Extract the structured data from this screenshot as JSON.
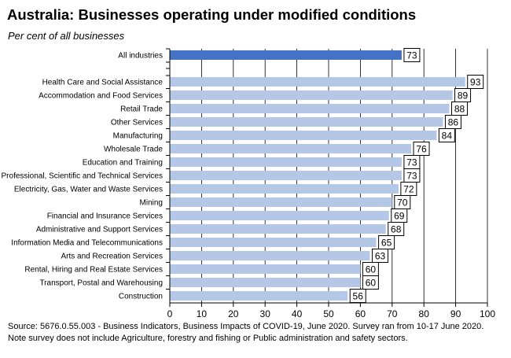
{
  "title": "Australia: Businesses operating under modified conditions",
  "subtitle": "Per cent of all businesses",
  "source": "Source: 5676.0.55.003 - Business Indicators, Business Impacts of COVID-19, June 2020.  Survey ran from 10-17 June 2020.  Note survey does not include Agriculture, forestry and fishing or Public administration and safety sectors.",
  "colors": {
    "highlight": "#4472C4",
    "bar": "#B4C7E7",
    "grid": "#000000"
  },
  "chart_data": {
    "type": "bar",
    "orientation": "horizontal",
    "title": "Australia: Businesses operating under modified conditions",
    "subtitle": "Per cent of all businesses",
    "xlabel": "",
    "ylabel": "",
    "xlim": [
      0,
      100
    ],
    "xticks": [
      0,
      10,
      20,
      30,
      40,
      50,
      60,
      70,
      80,
      90,
      100
    ],
    "grid": true,
    "categories": [
      "All industries",
      "Health Care and Social Assistance",
      "Accommodation and Food Services",
      "Retail Trade",
      "Other Services",
      "Manufacturing",
      "Wholesale Trade",
      "Education and Training",
      "Professional, Scientific and Technical Services",
      "Electricity, Gas, Water and Waste Services",
      "Mining",
      "Financial and Insurance Services",
      "Administrative and Support Services",
      "Information Media and Telecommunications",
      "Arts and Recreation Services",
      "Rental, Hiring and Real Estate Services",
      "Transport, Postal and Warehousing",
      "Construction"
    ],
    "values": [
      73,
      93,
      89,
      88,
      86,
      84,
      76,
      73,
      73,
      72,
      70,
      69,
      68,
      65,
      63,
      60,
      60,
      56
    ],
    "highlighted": [
      "All industries"
    ]
  }
}
